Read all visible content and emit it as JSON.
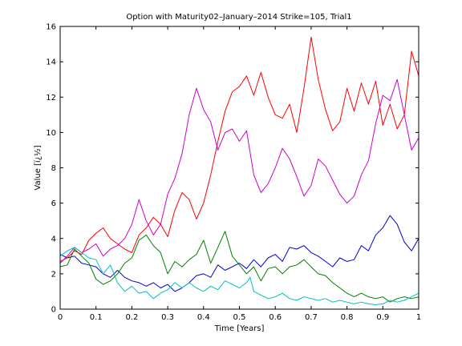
{
  "chart_data": {
    "type": "line",
    "title": "Option with Maturity02–January–2014 Strike=105, Trial1",
    "xlabel": "Time [Years]",
    "ylabel": "Value [ï¿½]",
    "xlim": [
      0,
      1
    ],
    "ylim": [
      0,
      16
    ],
    "x_ticks": [
      "0",
      "0.1",
      "0.2",
      "0.3",
      "0.4",
      "0.5",
      "0.6",
      "0.7",
      "0.8",
      "0.9",
      "1"
    ],
    "y_ticks": [
      "0",
      "2",
      "4",
      "6",
      "8",
      "10",
      "12",
      "14",
      "16"
    ],
    "grid": false,
    "legend": "none",
    "series": [
      {
        "color": "#0000cc",
        "points": [
          [
            0,
            3.1
          ],
          [
            0.02,
            2.9
          ],
          [
            0.04,
            3.0
          ],
          [
            0.06,
            2.6
          ],
          [
            0.08,
            2.5
          ],
          [
            0.1,
            2.4
          ],
          [
            0.12,
            2.0
          ],
          [
            0.14,
            1.8
          ],
          [
            0.16,
            2.2
          ],
          [
            0.18,
            1.8
          ],
          [
            0.2,
            1.6
          ],
          [
            0.22,
            1.5
          ],
          [
            0.24,
            1.3
          ],
          [
            0.26,
            1.5
          ],
          [
            0.28,
            1.2
          ],
          [
            0.3,
            1.4
          ],
          [
            0.32,
            1.0
          ],
          [
            0.34,
            1.2
          ],
          [
            0.36,
            1.5
          ],
          [
            0.38,
            1.9
          ],
          [
            0.4,
            2.0
          ],
          [
            0.42,
            1.8
          ],
          [
            0.44,
            2.5
          ],
          [
            0.46,
            2.2
          ],
          [
            0.48,
            2.4
          ],
          [
            0.5,
            2.6
          ],
          [
            0.52,
            2.3
          ],
          [
            0.54,
            2.8
          ],
          [
            0.56,
            2.4
          ],
          [
            0.58,
            2.9
          ],
          [
            0.6,
            3.1
          ],
          [
            0.62,
            2.7
          ],
          [
            0.64,
            3.5
          ],
          [
            0.66,
            3.4
          ],
          [
            0.68,
            3.6
          ],
          [
            0.7,
            3.2
          ],
          [
            0.72,
            3.0
          ],
          [
            0.74,
            2.7
          ],
          [
            0.76,
            2.4
          ],
          [
            0.78,
            2.9
          ],
          [
            0.8,
            2.7
          ],
          [
            0.82,
            2.8
          ],
          [
            0.84,
            3.6
          ],
          [
            0.86,
            3.3
          ],
          [
            0.88,
            4.2
          ],
          [
            0.9,
            4.6
          ],
          [
            0.92,
            5.3
          ],
          [
            0.94,
            4.8
          ],
          [
            0.96,
            3.8
          ],
          [
            0.98,
            3.3
          ],
          [
            1.0,
            4.0
          ]
        ]
      },
      {
        "color": "#008000",
        "points": [
          [
            0,
            2.4
          ],
          [
            0.02,
            2.5
          ],
          [
            0.04,
            3.4
          ],
          [
            0.06,
            3.0
          ],
          [
            0.08,
            2.6
          ],
          [
            0.1,
            1.7
          ],
          [
            0.12,
            1.4
          ],
          [
            0.14,
            1.6
          ],
          [
            0.16,
            2.0
          ],
          [
            0.18,
            2.6
          ],
          [
            0.2,
            2.9
          ],
          [
            0.22,
            3.9
          ],
          [
            0.24,
            4.2
          ],
          [
            0.26,
            3.6
          ],
          [
            0.28,
            3.2
          ],
          [
            0.3,
            2.0
          ],
          [
            0.32,
            2.7
          ],
          [
            0.34,
            2.4
          ],
          [
            0.36,
            2.8
          ],
          [
            0.38,
            3.1
          ],
          [
            0.4,
            3.9
          ],
          [
            0.42,
            2.6
          ],
          [
            0.44,
            3.5
          ],
          [
            0.46,
            4.4
          ],
          [
            0.48,
            3.0
          ],
          [
            0.5,
            2.5
          ],
          [
            0.52,
            2.0
          ],
          [
            0.54,
            2.4
          ],
          [
            0.56,
            1.6
          ],
          [
            0.58,
            2.3
          ],
          [
            0.6,
            2.4
          ],
          [
            0.62,
            2.0
          ],
          [
            0.64,
            2.4
          ],
          [
            0.66,
            2.5
          ],
          [
            0.68,
            2.8
          ],
          [
            0.7,
            2.4
          ],
          [
            0.72,
            2.0
          ],
          [
            0.74,
            1.9
          ],
          [
            0.76,
            1.5
          ],
          [
            0.78,
            1.2
          ],
          [
            0.8,
            0.9
          ],
          [
            0.82,
            0.7
          ],
          [
            0.84,
            0.9
          ],
          [
            0.86,
            0.7
          ],
          [
            0.88,
            0.6
          ],
          [
            0.9,
            0.7
          ],
          [
            0.92,
            0.4
          ],
          [
            0.94,
            0.6
          ],
          [
            0.96,
            0.7
          ],
          [
            0.98,
            0.6
          ],
          [
            1.0,
            0.7
          ]
        ]
      },
      {
        "color": "#ff0000",
        "points": [
          [
            0,
            2.7
          ],
          [
            0.02,
            2.9
          ],
          [
            0.04,
            3.3
          ],
          [
            0.06,
            3.1
          ],
          [
            0.08,
            3.9
          ],
          [
            0.1,
            4.3
          ],
          [
            0.12,
            4.6
          ],
          [
            0.14,
            4.0
          ],
          [
            0.16,
            3.7
          ],
          [
            0.18,
            3.4
          ],
          [
            0.2,
            3.2
          ],
          [
            0.22,
            4.2
          ],
          [
            0.24,
            4.6
          ],
          [
            0.26,
            5.2
          ],
          [
            0.28,
            4.8
          ],
          [
            0.3,
            4.1
          ],
          [
            0.32,
            5.6
          ],
          [
            0.34,
            6.6
          ],
          [
            0.36,
            6.2
          ],
          [
            0.38,
            5.1
          ],
          [
            0.4,
            6.0
          ],
          [
            0.42,
            7.6
          ],
          [
            0.44,
            9.5
          ],
          [
            0.46,
            11.2
          ],
          [
            0.48,
            12.3
          ],
          [
            0.5,
            12.6
          ],
          [
            0.52,
            13.2
          ],
          [
            0.54,
            12.1
          ],
          [
            0.56,
            13.4
          ],
          [
            0.58,
            12.0
          ],
          [
            0.6,
            11.0
          ],
          [
            0.62,
            10.8
          ],
          [
            0.64,
            11.6
          ],
          [
            0.66,
            10.0
          ],
          [
            0.68,
            12.5
          ],
          [
            0.7,
            15.4
          ],
          [
            0.72,
            13.0
          ],
          [
            0.74,
            11.3
          ],
          [
            0.76,
            10.1
          ],
          [
            0.78,
            10.6
          ],
          [
            0.8,
            12.5
          ],
          [
            0.82,
            11.2
          ],
          [
            0.84,
            12.8
          ],
          [
            0.86,
            11.6
          ],
          [
            0.88,
            12.9
          ],
          [
            0.9,
            10.4
          ],
          [
            0.92,
            11.6
          ],
          [
            0.94,
            10.2
          ],
          [
            0.96,
            11.0
          ],
          [
            0.98,
            14.6
          ],
          [
            1.0,
            13.2
          ]
        ]
      },
      {
        "color": "#cc00cc",
        "points": [
          [
            0,
            2.6
          ],
          [
            0.02,
            3.0
          ],
          [
            0.04,
            3.5
          ],
          [
            0.06,
            3.2
          ],
          [
            0.08,
            3.4
          ],
          [
            0.1,
            3.7
          ],
          [
            0.12,
            3.0
          ],
          [
            0.14,
            3.4
          ],
          [
            0.16,
            3.6
          ],
          [
            0.18,
            4.0
          ],
          [
            0.2,
            4.8
          ],
          [
            0.22,
            6.2
          ],
          [
            0.24,
            5.0
          ],
          [
            0.26,
            4.2
          ],
          [
            0.28,
            4.8
          ],
          [
            0.3,
            6.5
          ],
          [
            0.32,
            7.4
          ],
          [
            0.34,
            8.8
          ],
          [
            0.36,
            11.0
          ],
          [
            0.38,
            12.5
          ],
          [
            0.4,
            11.3
          ],
          [
            0.42,
            10.6
          ],
          [
            0.44,
            9.0
          ],
          [
            0.46,
            10.0
          ],
          [
            0.48,
            10.2
          ],
          [
            0.5,
            9.5
          ],
          [
            0.52,
            10.1
          ],
          [
            0.54,
            7.6
          ],
          [
            0.56,
            6.6
          ],
          [
            0.58,
            7.1
          ],
          [
            0.6,
            8.0
          ],
          [
            0.62,
            9.1
          ],
          [
            0.64,
            8.5
          ],
          [
            0.66,
            7.5
          ],
          [
            0.68,
            6.4
          ],
          [
            0.7,
            7.0
          ],
          [
            0.72,
            8.5
          ],
          [
            0.74,
            8.1
          ],
          [
            0.76,
            7.3
          ],
          [
            0.78,
            6.5
          ],
          [
            0.8,
            6.0
          ],
          [
            0.82,
            6.4
          ],
          [
            0.84,
            7.6
          ],
          [
            0.86,
            8.4
          ],
          [
            0.88,
            10.5
          ],
          [
            0.9,
            12.1
          ],
          [
            0.92,
            11.8
          ],
          [
            0.94,
            13.0
          ],
          [
            0.96,
            11.0
          ],
          [
            0.98,
            9.0
          ],
          [
            1.0,
            9.7
          ]
        ]
      },
      {
        "color": "#00bfbf",
        "points": [
          [
            0,
            3.0
          ],
          [
            0.02,
            3.3
          ],
          [
            0.04,
            3.5
          ],
          [
            0.06,
            3.2
          ],
          [
            0.08,
            2.9
          ],
          [
            0.1,
            2.8
          ],
          [
            0.12,
            2.0
          ],
          [
            0.14,
            2.5
          ],
          [
            0.16,
            1.5
          ],
          [
            0.18,
            1.0
          ],
          [
            0.2,
            1.3
          ],
          [
            0.22,
            0.9
          ],
          [
            0.24,
            1.0
          ],
          [
            0.26,
            0.6
          ],
          [
            0.28,
            0.9
          ],
          [
            0.3,
            1.1
          ],
          [
            0.32,
            1.5
          ],
          [
            0.34,
            1.2
          ],
          [
            0.36,
            1.5
          ],
          [
            0.38,
            1.2
          ],
          [
            0.4,
            1.0
          ],
          [
            0.42,
            1.3
          ],
          [
            0.44,
            1.1
          ],
          [
            0.46,
            1.6
          ],
          [
            0.48,
            1.4
          ],
          [
            0.5,
            1.2
          ],
          [
            0.52,
            1.5
          ],
          [
            0.53,
            1.8
          ],
          [
            0.54,
            1.0
          ],
          [
            0.56,
            0.8
          ],
          [
            0.58,
            0.6
          ],
          [
            0.6,
            0.7
          ],
          [
            0.62,
            0.9
          ],
          [
            0.64,
            0.6
          ],
          [
            0.66,
            0.5
          ],
          [
            0.68,
            0.7
          ],
          [
            0.7,
            0.6
          ],
          [
            0.72,
            0.5
          ],
          [
            0.74,
            0.6
          ],
          [
            0.76,
            0.4
          ],
          [
            0.78,
            0.5
          ],
          [
            0.8,
            0.4
          ],
          [
            0.82,
            0.3
          ],
          [
            0.84,
            0.4
          ],
          [
            0.86,
            0.3
          ],
          [
            0.88,
            0.25
          ],
          [
            0.9,
            0.3
          ],
          [
            0.92,
            0.5
          ],
          [
            0.94,
            0.4
          ],
          [
            0.96,
            0.5
          ],
          [
            0.98,
            0.7
          ],
          [
            1.0,
            0.9
          ]
        ]
      }
    ]
  }
}
